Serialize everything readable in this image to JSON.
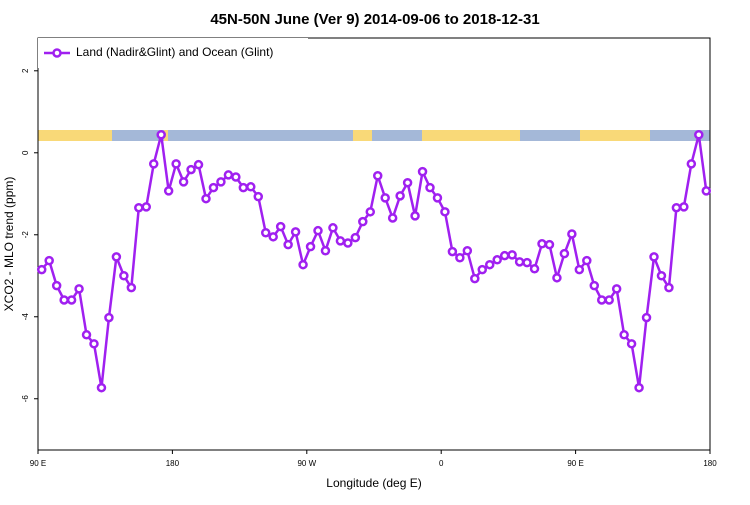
{
  "chart_data": {
    "type": "line",
    "title": "45N-50N June (Ver 9)   2014-09-06 to 2018-12-31",
    "x_label": "Longitude (deg E)",
    "y_label": "XCO2 - MLO trend (ppm)",
    "legend_position": "top-left",
    "x": [
      92.5,
      97.5,
      102.5,
      107.5,
      112.5,
      117.5,
      122.5,
      127.5,
      132.5,
      137.5,
      142.5,
      147.5,
      152.5,
      157.5,
      162.5,
      167.5,
      172.5,
      177.5,
      182.5,
      187.5,
      192.5,
      197.5,
      202.5,
      207.5,
      212.5,
      217.5,
      222.5,
      227.5,
      232.5,
      237.5,
      242.5,
      247.5,
      252.5,
      257.5,
      262.5,
      267.5,
      272.5,
      277.5,
      282.5,
      287.5,
      292.5,
      297.5,
      302.5,
      307.5,
      312.5,
      317.5,
      322.5,
      327.5,
      332.5,
      337.5,
      342.5,
      347.5,
      352.5,
      357.5,
      362.5,
      367.5,
      372.5,
      377.5,
      382.5,
      387.5,
      392.5,
      397.5,
      402.5,
      407.5,
      412.5,
      417.5,
      422.5,
      427.5,
      432.5,
      437.5,
      442.5,
      447.5,
      452.5,
      457.5,
      462.5,
      467.5,
      472.5,
      477.5,
      482.5,
      487.5,
      492.5,
      497.5,
      502.5,
      507.5,
      512.5,
      517.5,
      522.5,
      527.5,
      532.5,
      537.5
    ],
    "series": [
      {
        "name": "Land (Nadir&Glint) and Ocean (Glint)",
        "color": "#a020f0",
        "values": [
          -2.85,
          -2.63,
          -3.24,
          -3.59,
          -3.59,
          -3.32,
          -4.44,
          -4.66,
          -5.73,
          -4.02,
          -2.54,
          -3.0,
          -3.29,
          -1.34,
          -1.32,
          -0.27,
          0.44,
          -0.93,
          -0.27,
          -0.71,
          -0.41,
          -0.29,
          -1.12,
          -0.85,
          -0.71,
          -0.54,
          -0.59,
          -0.85,
          -0.83,
          -1.07,
          -1.95,
          -2.05,
          -1.8,
          -2.24,
          -1.93,
          -2.73,
          -2.29,
          -1.9,
          -2.39,
          -1.83,
          -2.15,
          -2.2,
          -2.07,
          -1.68,
          -1.44,
          -0.56,
          -1.1,
          -1.59,
          -1.05,
          -0.73,
          -1.54,
          -0.46,
          -0.85,
          -1.1,
          -1.44,
          -2.41,
          -2.56,
          -2.39,
          -3.07,
          -2.85,
          -2.73,
          -2.61,
          -2.51,
          -2.49,
          -2.66,
          -2.68,
          -2.83,
          -2.22,
          -2.24,
          -3.05,
          -2.46,
          -1.98,
          -2.85,
          -2.63,
          -3.24,
          -3.59,
          -3.59,
          -3.32,
          -4.44,
          -4.66,
          -5.73,
          -4.02,
          -2.54,
          -3.0,
          -3.29,
          -1.34,
          -1.32,
          -0.27,
          0.44,
          -0.93
        ]
      }
    ],
    "xlim": [
      90,
      540
    ],
    "xticks": [
      {
        "value": 90,
        "label": "90 E"
      },
      {
        "value": 180,
        "label": "180"
      },
      {
        "value": 270,
        "label": "90 W"
      },
      {
        "value": 360,
        "label": "0"
      },
      {
        "value": 450,
        "label": "90 E"
      },
      {
        "value": 540,
        "label": "180"
      }
    ],
    "ylim": [
      -7.25,
      2.8
    ],
    "yticks": [
      2,
      0,
      -2,
      -4,
      -6
    ]
  }
}
